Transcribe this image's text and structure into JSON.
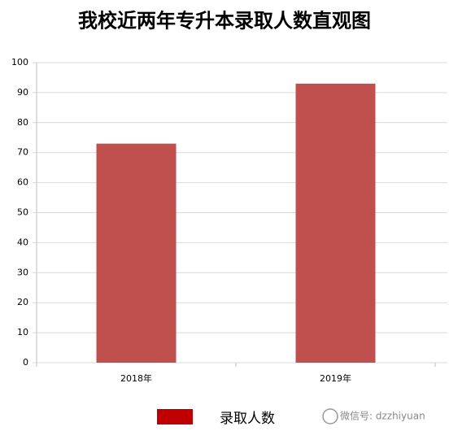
{
  "chart_data": {
    "type": "bar",
    "title": "我校近两年专升本录取人数直观图",
    "categories": [
      "2018年",
      "2019年"
    ],
    "series": [
      {
        "name": "录取人数",
        "color": "#c0504d",
        "values": [
          73,
          93
        ]
      }
    ],
    "legend_color": "#c00000",
    "ylim": [
      0,
      100
    ],
    "yticks": [
      0,
      10,
      20,
      30,
      40,
      50,
      60,
      70,
      80,
      90,
      100
    ],
    "grid": true,
    "legend": "bottom",
    "watermark": "微信号: dzzhiyuan"
  }
}
